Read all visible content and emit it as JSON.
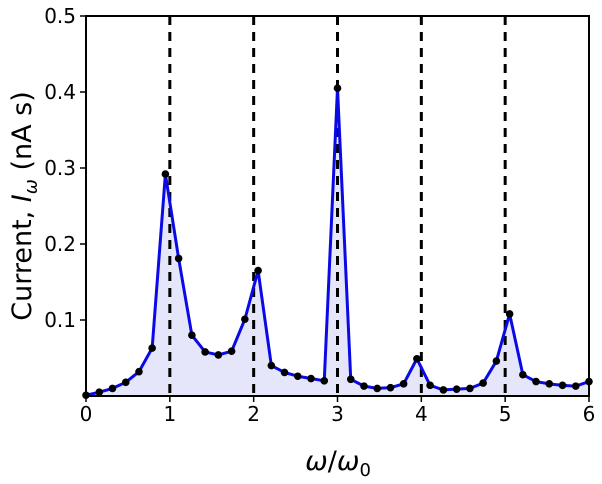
{
  "chart_data": {
    "type": "line",
    "title": "",
    "xlabel": "ω/ω₀",
    "ylabel": "Current, Iω (nA s)",
    "ylabel_parts": {
      "prefix": "Current, ",
      "symbol": "I",
      "subscript": "ω",
      "suffix": " (nA s)"
    },
    "xlabel_parts": {
      "num": "ω",
      "slash": "/",
      "den": "ω",
      "den_sub": "0"
    },
    "xlim": [
      0,
      6
    ],
    "ylim": [
      0,
      0.5
    ],
    "x_ticks": [
      0,
      1,
      2,
      3,
      4,
      5,
      6
    ],
    "x_tick_labels": [
      "0",
      "1",
      "2",
      "3",
      "4",
      "5",
      "6"
    ],
    "y_ticks": [
      0.1,
      0.2,
      0.3,
      0.4,
      0.5
    ],
    "y_tick_labels": [
      "0.1",
      "0.2",
      "0.3",
      "0.4",
      "0.5"
    ],
    "grid": false,
    "reference_lines": [
      1,
      2,
      3,
      4,
      5
    ],
    "colors": {
      "line": "#0a0ae6",
      "fill": "#e6e6fa",
      "marker": "#000000",
      "reference": "#000000"
    },
    "series": [
      {
        "x": [
          0.0,
          0.158,
          0.316,
          0.474,
          0.632,
          0.789,
          0.947,
          1.105,
          1.263,
          1.421,
          1.579,
          1.737,
          1.895,
          2.053,
          2.211,
          2.368,
          2.526,
          2.684,
          2.842,
          3.0,
          3.158,
          3.316,
          3.474,
          3.632,
          3.789,
          3.947,
          4.105,
          4.263,
          4.421,
          4.579,
          4.737,
          4.895,
          5.053,
          5.211,
          5.368,
          5.526,
          5.684,
          5.842,
          6.0
        ],
        "y": [
          0.001,
          0.005,
          0.01,
          0.018,
          0.032,
          0.063,
          0.292,
          0.181,
          0.08,
          0.058,
          0.054,
          0.059,
          0.101,
          0.165,
          0.04,
          0.031,
          0.026,
          0.023,
          0.02,
          0.405,
          0.022,
          0.013,
          0.01,
          0.011,
          0.016,
          0.049,
          0.014,
          0.008,
          0.009,
          0.01,
          0.017,
          0.046,
          0.108,
          0.028,
          0.019,
          0.016,
          0.014,
          0.013,
          0.019
        ]
      }
    ]
  }
}
